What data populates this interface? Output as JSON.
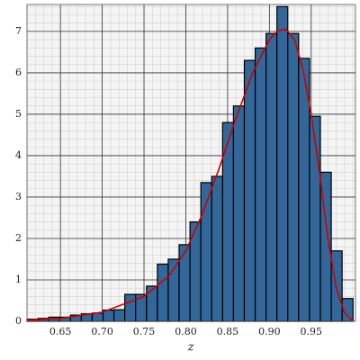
{
  "chart_data": {
    "type": "histogram",
    "xlabel": "z",
    "bins": [
      0.61,
      0.623,
      0.636,
      0.649,
      0.662,
      0.675,
      0.688,
      0.701,
      0.714,
      0.727,
      0.74,
      0.753,
      0.766,
      0.779,
      0.792,
      0.805,
      0.818,
      0.831,
      0.844,
      0.857,
      0.87,
      0.883,
      0.896,
      0.909,
      0.922,
      0.935,
      0.948,
      0.961,
      0.974,
      0.987,
      1.0
    ],
    "values": [
      0.05,
      0.07,
      0.1,
      0.1,
      0.15,
      0.18,
      0.2,
      0.27,
      0.28,
      0.65,
      0.65,
      0.85,
      1.38,
      1.5,
      1.85,
      2.4,
      3.35,
      3.5,
      4.8,
      5.2,
      6.3,
      6.6,
      6.95,
      7.6,
      6.95,
      6.35,
      4.95,
      3.6,
      1.7,
      0.55
    ],
    "color": "#336699",
    "curve": {
      "color": "#cc0000",
      "x": [
        0.61,
        0.65,
        0.7,
        0.75,
        0.78,
        0.8,
        0.82,
        0.84,
        0.86,
        0.88,
        0.9,
        0.91,
        0.92,
        0.93,
        0.94,
        0.95,
        0.96,
        0.97,
        0.98,
        0.99,
        1.0
      ],
      "values": [
        0.02,
        0.07,
        0.22,
        0.6,
        1.1,
        1.7,
        2.6,
        3.7,
        4.9,
        6.0,
        6.8,
        7.02,
        7.05,
        6.8,
        6.1,
        5.0,
        3.6,
        2.0,
        0.8,
        0.2,
        0.0
      ]
    },
    "xlim": [
      0.61,
      1.003
    ],
    "ylim": [
      0,
      7.65
    ],
    "xticks": [
      {
        "value": 0.65,
        "label": "0.65"
      },
      {
        "value": 0.7,
        "label": "0.70"
      },
      {
        "value": 0.75,
        "label": "0.75"
      },
      {
        "value": 0.8,
        "label": "0.80"
      },
      {
        "value": 0.85,
        "label": "0.85"
      },
      {
        "value": 0.9,
        "label": "0.90"
      },
      {
        "value": 0.95,
        "label": "0.95"
      }
    ],
    "yticks": [
      0,
      1,
      2,
      3,
      4,
      5,
      6,
      7
    ],
    "grid": true,
    "minor_grid": true
  }
}
